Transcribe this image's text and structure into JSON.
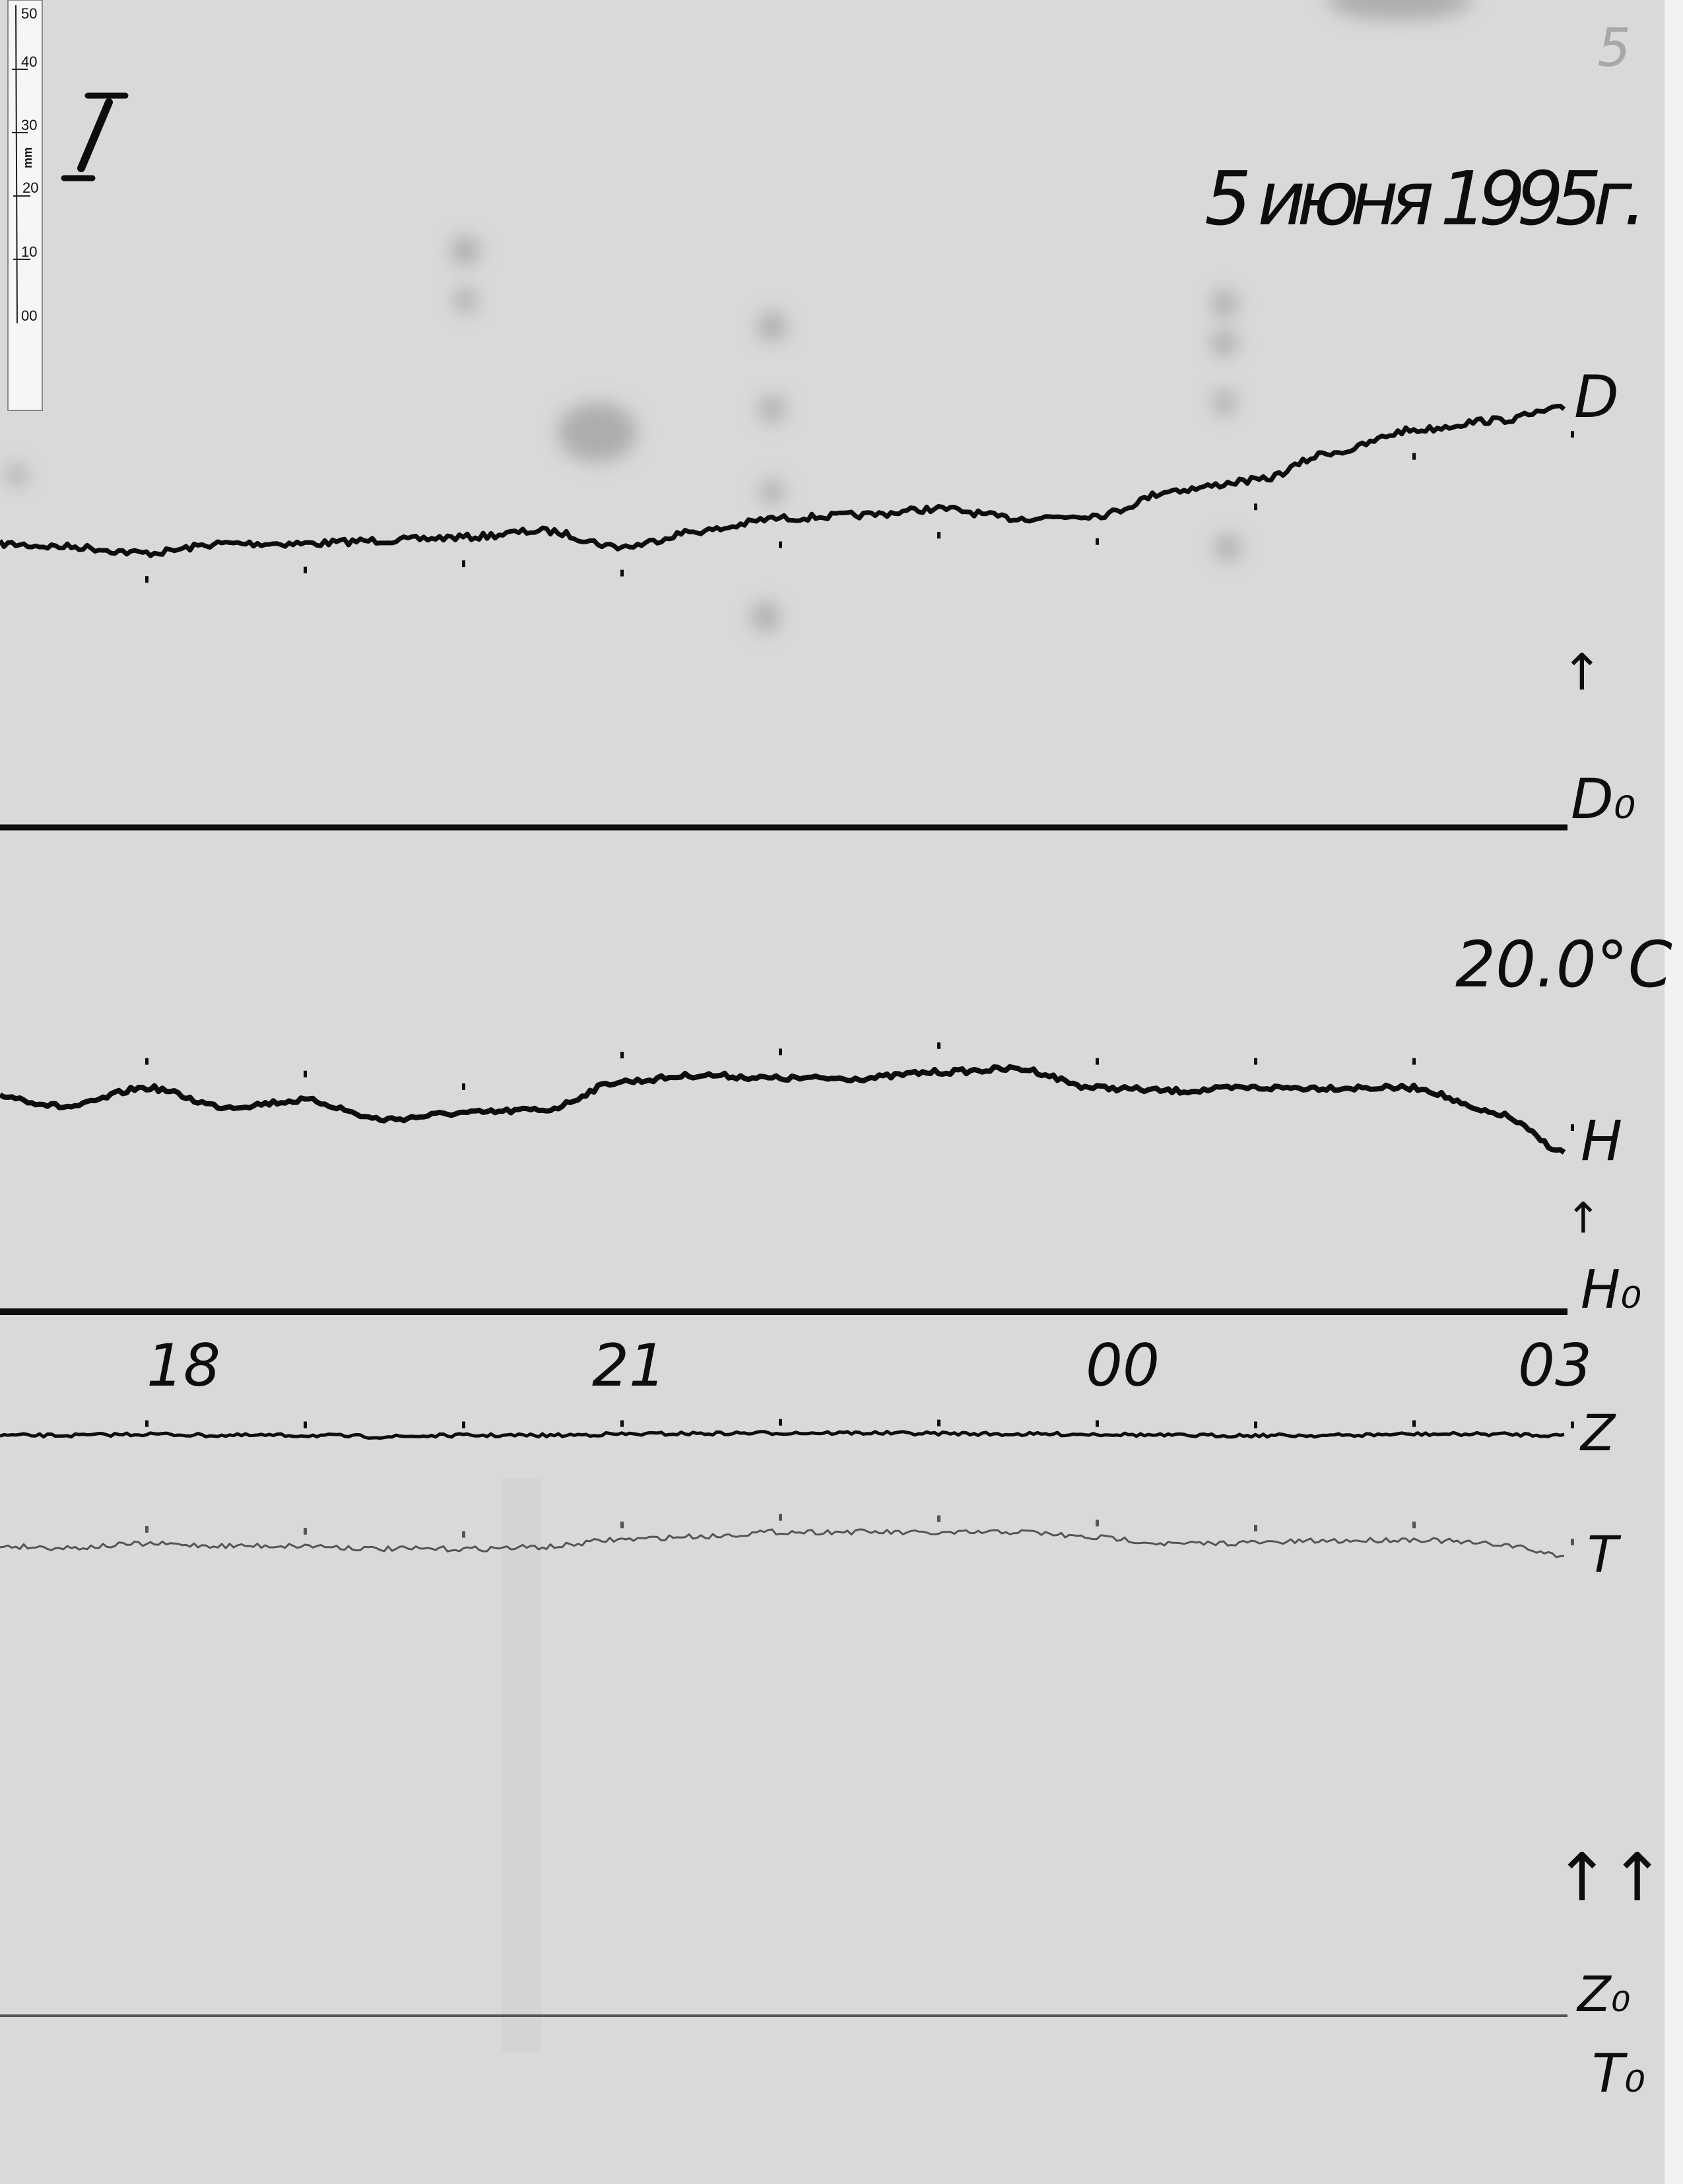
{
  "page_number": "5",
  "sheet_label": "I",
  "date": "5 июня 1995г.",
  "temperature": "20.0°C",
  "ruler": {
    "unit": "mm",
    "ticks": [
      "50",
      "40",
      "30",
      "20",
      "10",
      "00"
    ]
  },
  "annotations": {
    "d_arrow": "↑",
    "h_arrow": "↑",
    "zt_arrows": "↑↑"
  },
  "colors": {
    "paper": "#d9d9d9",
    "trace": "#0d0d0d",
    "t_trace": "#555555"
  },
  "chart_data": {
    "type": "line",
    "x": [
      "17:00",
      "17:30",
      "18:00",
      "18:30",
      "19:00",
      "19:30",
      "20:00",
      "20:30",
      "21:00",
      "21:30",
      "22:00",
      "22:30",
      "23:00",
      "23:30",
      "00:00",
      "00:30",
      "01:00",
      "01:30",
      "02:00",
      "02:30",
      "03:00"
    ],
    "x_tick_labels": [
      "18",
      "21",
      "00",
      "03"
    ],
    "y_unit": "mm above baseline",
    "series": [
      {
        "name": "D",
        "baseline_label": "D₀",
        "values": [
          45,
          44.5,
          43.5,
          45,
          45,
          45.5,
          46,
          47,
          44.5,
          47,
          49,
          49.5,
          50.5,
          49,
          49.5,
          53.5,
          55,
          59.5,
          63,
          64.5,
          66.5
        ]
      },
      {
        "name": "H",
        "baseline_label": "H₀",
        "values": [
          34.5,
          32.5,
          35.5,
          32.5,
          33.5,
          30.5,
          31.5,
          32,
          36.5,
          37.5,
          37,
          37,
          38,
          38.5,
          35.5,
          35,
          35.5,
          35.5,
          35.5,
          31.5,
          25
        ]
      },
      {
        "name": "Z",
        "baseline_label": "Z₀",
        "values": [
          92,
          92,
          92.2,
          92,
          92,
          91.8,
          92,
          92,
          92.2,
          92.3,
          92.4,
          92.4,
          92.3,
          92.2,
          92.2,
          92,
          92,
          92,
          92.2,
          92.2,
          92
        ]
      },
      {
        "name": "T",
        "baseline_label": "T₀",
        "values": [
          74.5,
          74.2,
          74.8,
          74.5,
          74.5,
          74,
          74,
          74.3,
          75.5,
          76,
          76.7,
          76.7,
          76.5,
          76.7,
          75.8,
          74.8,
          75,
          75.3,
          75.5,
          74.8,
          72.8
        ]
      }
    ]
  }
}
